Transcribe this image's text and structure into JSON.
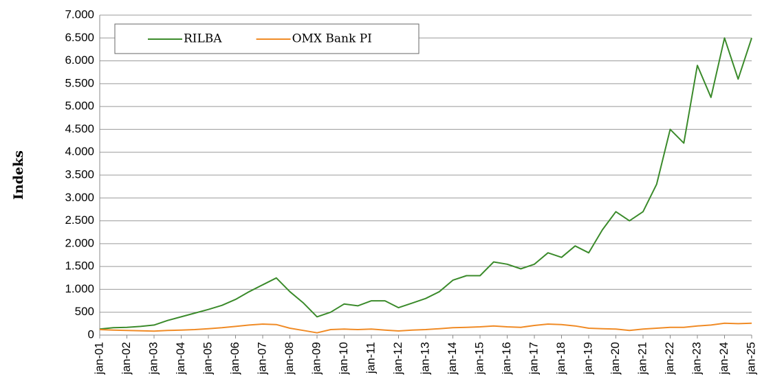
{
  "chart_data": {
    "type": "line",
    "y_label": "Indeks",
    "categories": [
      "jan-01",
      null,
      "jan-02",
      null,
      "jan-03",
      null,
      "jan-04",
      null,
      "jan-05",
      null,
      "jan-06",
      null,
      "jan-07",
      null,
      "jan-08",
      null,
      "jan-09",
      null,
      "jan-10",
      null,
      "jan-11",
      null,
      "jan-12",
      null,
      "jan-13",
      null,
      "jan-14",
      null,
      "jan-15",
      null,
      "jan-16",
      null,
      "jan-17",
      null,
      "jan-18",
      null,
      "jan-19",
      null,
      "jan-20",
      null,
      "jan-21",
      null,
      "jan-22",
      null,
      "jan-23",
      null,
      "jan-24",
      null,
      "jan-25"
    ],
    "series": [
      {
        "name": "RILBA",
        "color": "#3a8a2a",
        "values": [
          130,
          160,
          170,
          190,
          220,
          320,
          400,
          480,
          560,
          650,
          780,
          950,
          1100,
          1250,
          950,
          700,
          400,
          500,
          680,
          640,
          750,
          750,
          600,
          700,
          800,
          950,
          1200,
          1300,
          1300,
          1600,
          1550,
          1450,
          1550,
          1800,
          1700,
          1950,
          1800,
          2300,
          2700,
          2500,
          2700,
          3300,
          4500,
          4200,
          5900,
          5200,
          6500,
          5600,
          6500
        ]
      },
      {
        "name": "OMX Bank PI",
        "color": "#f08a24",
        "values": [
          120,
          110,
          100,
          95,
          85,
          100,
          110,
          120,
          140,
          160,
          190,
          220,
          240,
          230,
          150,
          100,
          50,
          120,
          130,
          120,
          130,
          110,
          90,
          110,
          120,
          140,
          160,
          170,
          180,
          200,
          180,
          170,
          210,
          240,
          230,
          200,
          150,
          140,
          130,
          100,
          130,
          150,
          170,
          170,
          200,
          220,
          260,
          250,
          260
        ]
      }
    ],
    "ylim": [
      0,
      7000
    ],
    "yticks": [
      0,
      {
        "value": 500,
        "label": "500"
      },
      {
        "value": 1000,
        "label": "1.000"
      },
      {
        "value": 1500,
        "label": "1.500"
      },
      {
        "value": 2000,
        "label": "2.000"
      },
      {
        "value": 2500,
        "label": "2.500"
      },
      {
        "value": 3000,
        "label": "3.000"
      },
      {
        "value": 3500,
        "label": "3.500"
      },
      {
        "value": 4000,
        "label": "4.000"
      },
      {
        "value": 4500,
        "label": "4.500"
      },
      {
        "value": 5000,
        "label": "5.000"
      },
      {
        "value": 5500,
        "label": "5.500"
      },
      {
        "value": 6000,
        "label": "6.000"
      },
      {
        "value": 6500,
        "label": "6.500"
      },
      {
        "value": 7000,
        "label": "7.000"
      }
    ],
    "grid": true,
    "legend": "upper left"
  }
}
